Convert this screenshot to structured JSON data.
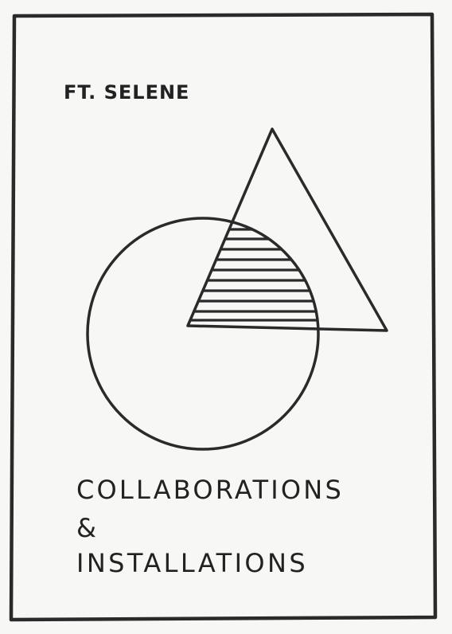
{
  "poster": {
    "subtitle": "FT. SELENE",
    "title_lines": [
      "COLLABORATIONS",
      "&",
      "INSTALLATIONS"
    ],
    "ink_color": "#222222",
    "paper_color": "#f7f7f5"
  }
}
